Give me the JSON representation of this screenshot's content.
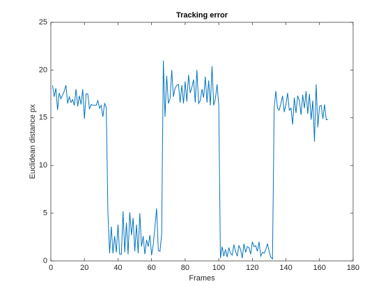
{
  "chart_data": {
    "type": "line",
    "title": "Tracking error",
    "x_label": "Frames",
    "y_label": "Euclidean distance px",
    "x": [
      1,
      2,
      3,
      4,
      5,
      6,
      7,
      8,
      9,
      10,
      11,
      12,
      13,
      14,
      15,
      16,
      17,
      18,
      19,
      20,
      21,
      22,
      23,
      24,
      25,
      26,
      27,
      28,
      29,
      30,
      31,
      32,
      33,
      34,
      35,
      36,
      37,
      38,
      39,
      40,
      41,
      42,
      43,
      44,
      45,
      46,
      47,
      48,
      49,
      50,
      51,
      52,
      53,
      54,
      55,
      56,
      57,
      58,
      59,
      60,
      61,
      62,
      63,
      64,
      65,
      66,
      67,
      68,
      69,
      70,
      71,
      72,
      73,
      74,
      75,
      76,
      77,
      78,
      79,
      80,
      81,
      82,
      83,
      84,
      85,
      86,
      87,
      88,
      89,
      90,
      91,
      92,
      93,
      94,
      95,
      96,
      97,
      98,
      99,
      100,
      101,
      102,
      103,
      104,
      105,
      106,
      107,
      108,
      109,
      110,
      111,
      112,
      113,
      114,
      115,
      116,
      117,
      118,
      119,
      120,
      121,
      122,
      123,
      124,
      125,
      126,
      127,
      128,
      129,
      130,
      131,
      132,
      133,
      134,
      135,
      136,
      137,
      138,
      139,
      140,
      141,
      142,
      143,
      144,
      145,
      146,
      147,
      148,
      149,
      150,
      151,
      152,
      153,
      154,
      155,
      156,
      157,
      158,
      159,
      160,
      161,
      162,
      163,
      164,
      165
    ],
    "series": [
      {
        "color": "#0072bd",
        "values": [
          18.4,
          17.2,
          18.1,
          15.8,
          17.6,
          17.0,
          17.4,
          17.8,
          18.4,
          16.5,
          17.2,
          16.6,
          16.9,
          16.3,
          18.0,
          16.2,
          17.3,
          16.4,
          18.0,
          14.9,
          17.5,
          17.5,
          15.9,
          16.4,
          16.3,
          16.3,
          16.3,
          16.8,
          16.0,
          16.3,
          15.1,
          16.5,
          16.1,
          5.0,
          0.8,
          3.6,
          0.8,
          2.6,
          0.9,
          3.8,
          0.7,
          0.7,
          5.2,
          0.9,
          4.0,
          0.7,
          5.1,
          2.7,
          4.5,
          1.0,
          3.8,
          0.8,
          5.0,
          1.5,
          2.6,
          0.7,
          2.2,
          1.5,
          2.7,
          0.6,
          1.7,
          3.6,
          5.5,
          1.1,
          1.0,
          2.8,
          21.0,
          15.1,
          19.4,
          16.5,
          17.0,
          20.0,
          17.2,
          18.1,
          18.4,
          18.5,
          16.6,
          18.4,
          16.5,
          18.8,
          16.7,
          19.5,
          17.6,
          18.2,
          19.0,
          16.6,
          20.0,
          16.5,
          16.8,
          18.0,
          17.1,
          19.3,
          16.6,
          18.9,
          16.3,
          20.4,
          16.3,
          17.0,
          18.5,
          16.3,
          0.3,
          1.5,
          0.5,
          1.2,
          0.4,
          1.4,
          0.8,
          0.6,
          1.7,
          1.0,
          0.5,
          1.6,
          1.2,
          0.3,
          1.8,
          0.9,
          1.5,
          1.4,
          0.7,
          2.0,
          1.5,
          1.6,
          1.0,
          2.0,
          0.5,
          0.9,
          0.8,
          1.2,
          1.8,
          1.0,
          0.4,
          0.2,
          16.0,
          17.8,
          16.0,
          15.8,
          16.5,
          17.3,
          15.6,
          16.4,
          17.6,
          15.8,
          16.0,
          14.3,
          17.1,
          15.5,
          17.3,
          16.8,
          15.3,
          17.4,
          16.0,
          17.8,
          15.4,
          17.5,
          14.8,
          16.8,
          12.5,
          18.5,
          14.0,
          16.2,
          16.3,
          14.9,
          16.4,
          14.8,
          14.8
        ]
      }
    ],
    "xlim": [
      0,
      180
    ],
    "xticks": [
      0,
      20,
      40,
      60,
      80,
      100,
      120,
      140,
      160,
      180
    ],
    "ylim": [
      0,
      25
    ],
    "yticks": [
      0,
      5,
      10,
      15,
      20,
      25
    ]
  }
}
